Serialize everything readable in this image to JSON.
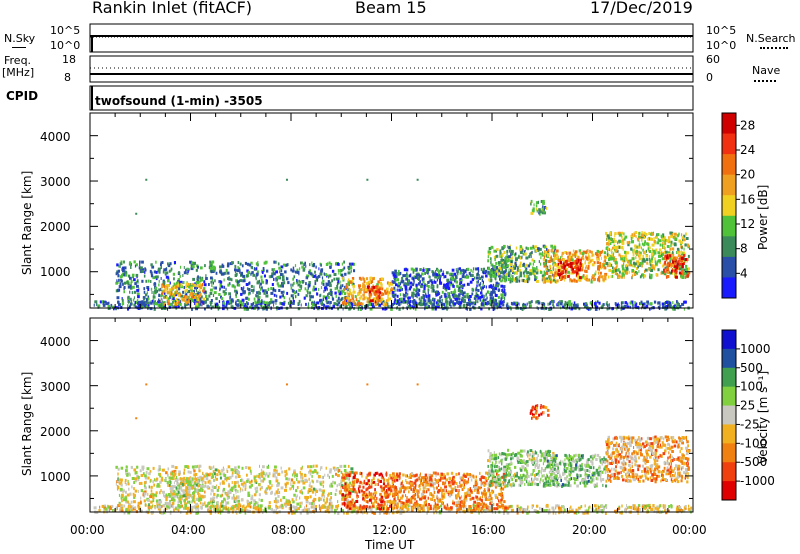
{
  "header": {
    "title": "Rankin Inlet (fitACF)",
    "beam": "Beam 15",
    "date": "17/Dec/2019"
  },
  "panels": {
    "nsky": {
      "label": "N.Sky",
      "left_ticks": [
        "10^5",
        "10^0"
      ],
      "right_ticks": [
        "10^5",
        "10^0"
      ],
      "right_label": "N.Search"
    },
    "freq": {
      "label_line1": "Freq.",
      "label_line2": "[MHz]",
      "left_ticks": [
        "18",
        "8"
      ],
      "right_ticks": [
        "60",
        "0"
      ],
      "right_label": "Nave"
    },
    "cpid": {
      "label": "CPID",
      "text": "twofsound (1-min) -3505"
    }
  },
  "colors": {
    "power": [
      "#1a1aff",
      "#2a4fa8",
      "#3a8a5a",
      "#4fc23a",
      "#f0d020",
      "#f0a020",
      "#f07010",
      "#f03010",
      "#d00000"
    ],
    "velocity": [
      "#e00000",
      "#f04010",
      "#f08010",
      "#f0b020",
      "#c8c8c0",
      "#80d040",
      "#40a050",
      "#2050a0",
      "#1010d0"
    ]
  },
  "chart_data": [
    {
      "type": "heatmap",
      "ylabel": "Slant Range [km]",
      "yticks": [
        "1000",
        "2000",
        "3000",
        "4000"
      ],
      "ylim": [
        200,
        4500
      ],
      "xlim_hours": [
        0,
        24
      ],
      "xticks": [
        "00:00",
        "04:00",
        "08:00",
        "12:00",
        "16:00",
        "20:00",
        "00:00"
      ],
      "colorbar": {
        "label": "Power [dB]",
        "ticks": [
          "4",
          "8",
          "12",
          "16",
          "20",
          "24",
          "28"
        ],
        "range": [
          0,
          30
        ]
      },
      "regions": [
        {
          "t0": 0.1,
          "t1": 23.9,
          "r0": 200,
          "r1": 380,
          "level": 0.2
        },
        {
          "t0": 1.0,
          "t1": 10.5,
          "r0": 300,
          "r1": 1250,
          "level": 0.25
        },
        {
          "t0": 2.8,
          "t1": 4.5,
          "r0": 300,
          "r1": 800,
          "level": 0.55
        },
        {
          "t0": 10.0,
          "t1": 12.0,
          "r0": 300,
          "r1": 900,
          "level": 0.6
        },
        {
          "t0": 11.0,
          "t1": 11.5,
          "r0": 350,
          "r1": 700,
          "level": 0.85
        },
        {
          "t0": 12.0,
          "t1": 16.5,
          "r0": 300,
          "r1": 1100,
          "level": 0.2
        },
        {
          "t0": 15.8,
          "t1": 18.5,
          "r0": 800,
          "r1": 1600,
          "level": 0.35
        },
        {
          "t0": 17.5,
          "t1": 18.2,
          "r0": 2300,
          "r1": 2600,
          "level": 0.35
        },
        {
          "t0": 18.0,
          "t1": 20.5,
          "r0": 800,
          "r1": 1500,
          "level": 0.6
        },
        {
          "t0": 18.6,
          "t1": 19.5,
          "r0": 900,
          "r1": 1300,
          "level": 0.9
        },
        {
          "t0": 20.5,
          "t1": 23.8,
          "r0": 900,
          "r1": 1900,
          "level": 0.45
        },
        {
          "t0": 22.8,
          "t1": 23.8,
          "r0": 900,
          "r1": 1400,
          "level": 0.8
        }
      ]
    },
    {
      "type": "heatmap",
      "ylabel": "Slant Range [km]",
      "yticks": [
        "1000",
        "2000",
        "3000",
        "4000"
      ],
      "ylim": [
        200,
        4500
      ],
      "xlim_hours": [
        0,
        24
      ],
      "xticks": [
        "00:00",
        "04:00",
        "08:00",
        "12:00",
        "16:00",
        "20:00",
        "00:00"
      ],
      "xlabel": "Time UT",
      "colorbar": {
        "label": "Velocity [m s⁻¹]",
        "ticks": [
          "1000",
          "500",
          "100",
          "25",
          "-25",
          "-100",
          "-500",
          "-1000"
        ],
        "range": [
          -1000,
          1000
        ]
      },
      "regions": [
        {
          "t0": 0.1,
          "t1": 23.9,
          "r0": 200,
          "r1": 380,
          "level": 0.45
        },
        {
          "t0": 1.0,
          "t1": 10.5,
          "r0": 300,
          "r1": 1250,
          "level": 0.5
        },
        {
          "t0": 3.0,
          "t1": 4.5,
          "r0": 400,
          "r1": 1000,
          "level": 0.52
        },
        {
          "t0": 10.0,
          "t1": 12.2,
          "r0": 300,
          "r1": 1100,
          "level": 0.22
        },
        {
          "t0": 12.0,
          "t1": 16.5,
          "r0": 300,
          "r1": 1100,
          "level": 0.3
        },
        {
          "t0": 15.8,
          "t1": 18.5,
          "r0": 800,
          "r1": 1600,
          "level": 0.6
        },
        {
          "t0": 17.5,
          "t1": 18.2,
          "r0": 2300,
          "r1": 2600,
          "level": 0.2
        },
        {
          "t0": 18.0,
          "t1": 20.5,
          "r0": 800,
          "r1": 1500,
          "level": 0.62
        },
        {
          "t0": 20.5,
          "t1": 23.8,
          "r0": 900,
          "r1": 1900,
          "level": 0.35
        }
      ]
    }
  ]
}
